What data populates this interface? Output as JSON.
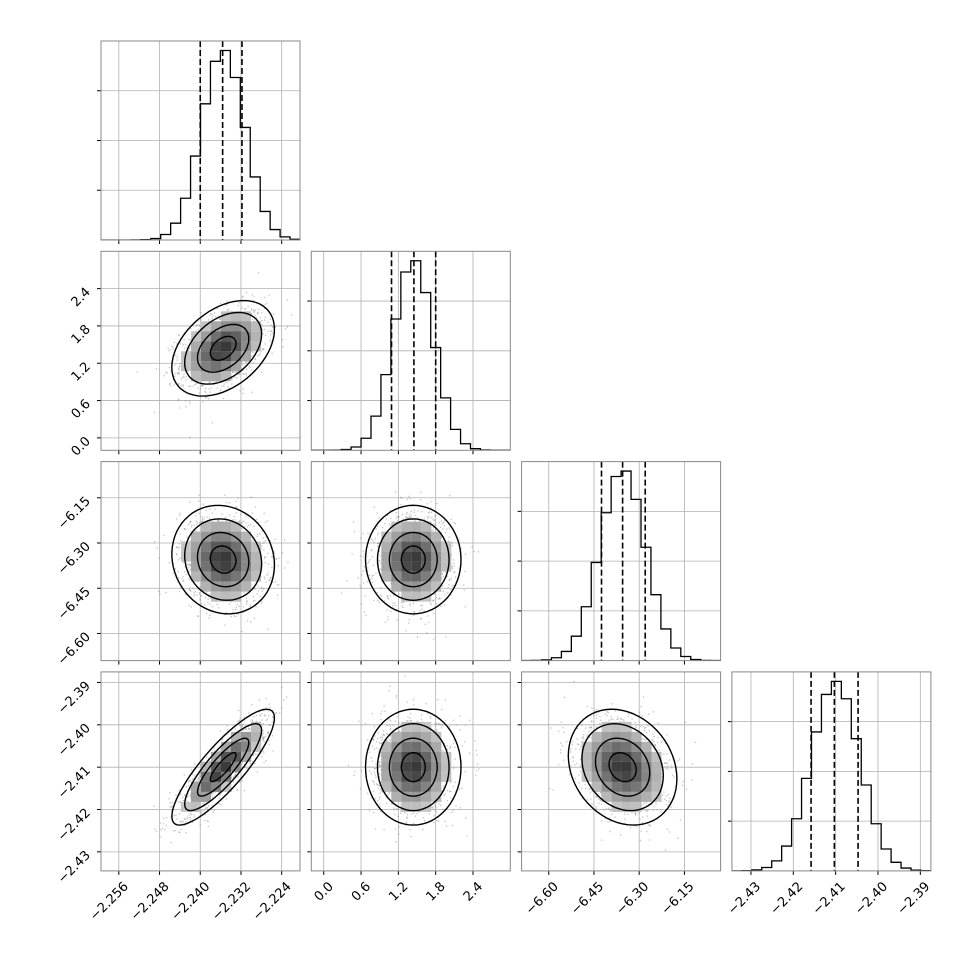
{
  "chart_data": {
    "type": "corner",
    "title": "",
    "params": [
      {
        "range": [
          -2.2595,
          -2.2204
        ],
        "mean": -2.2355,
        "sigma": 0.0042,
        "quantiles": [
          -2.24,
          -2.2356,
          -2.2318
        ],
        "ticks": [
          -2.256,
          -2.248,
          -2.24,
          -2.232,
          -2.224
        ],
        "tick_labels": [
          "−2.256",
          "−2.248",
          "−2.240",
          "−2.232",
          "−2.224"
        ]
      },
      {
        "range": [
          -0.2,
          3.0
        ],
        "mean": 1.44,
        "sigma": 0.32,
        "quantiles": [
          1.09,
          1.45,
          1.8
        ],
        "ticks": [
          0.0,
          0.6,
          1.2,
          1.8,
          2.4
        ],
        "tick_labels": [
          "0.0",
          "0.6",
          "1.2",
          "1.8",
          "2.4"
        ]
      },
      {
        "range": [
          -6.69,
          -6.03
        ],
        "mean": -6.355,
        "sigma": 0.075,
        "quantiles": [
          -6.425,
          -6.355,
          -6.28
        ],
        "ticks": [
          -6.6,
          -6.45,
          -6.3,
          -6.15
        ],
        "tick_labels": [
          "−6.60",
          "−6.45",
          "−6.30",
          "−6.15"
        ]
      },
      {
        "range": [
          -2.4345,
          -2.3875
        ],
        "mean": -2.41,
        "sigma": 0.0057,
        "quantiles": [
          -2.4158,
          -2.4103,
          -2.4047
        ],
        "ticks": [
          -2.43,
          -2.42,
          -2.41,
          -2.4,
          -2.39
        ],
        "tick_labels": [
          "−2.43",
          "−2.42",
          "−2.41",
          "−2.40",
          "−2.39"
        ]
      }
    ],
    "correlations": [
      [
        1.0,
        0.4,
        -0.1,
        0.85
      ],
      [
        0.4,
        1.0,
        0.0,
        0.0
      ],
      [
        -0.1,
        0.0,
        1.0,
        -0.2
      ],
      [
        0.85,
        0.0,
        -0.2,
        1.0
      ]
    ],
    "histogram_bins": 20,
    "grid": true,
    "colors": {
      "frame": "#888888",
      "grid": "#b0b0b0",
      "line": "#000000",
      "points": "#7a7a7a"
    }
  }
}
